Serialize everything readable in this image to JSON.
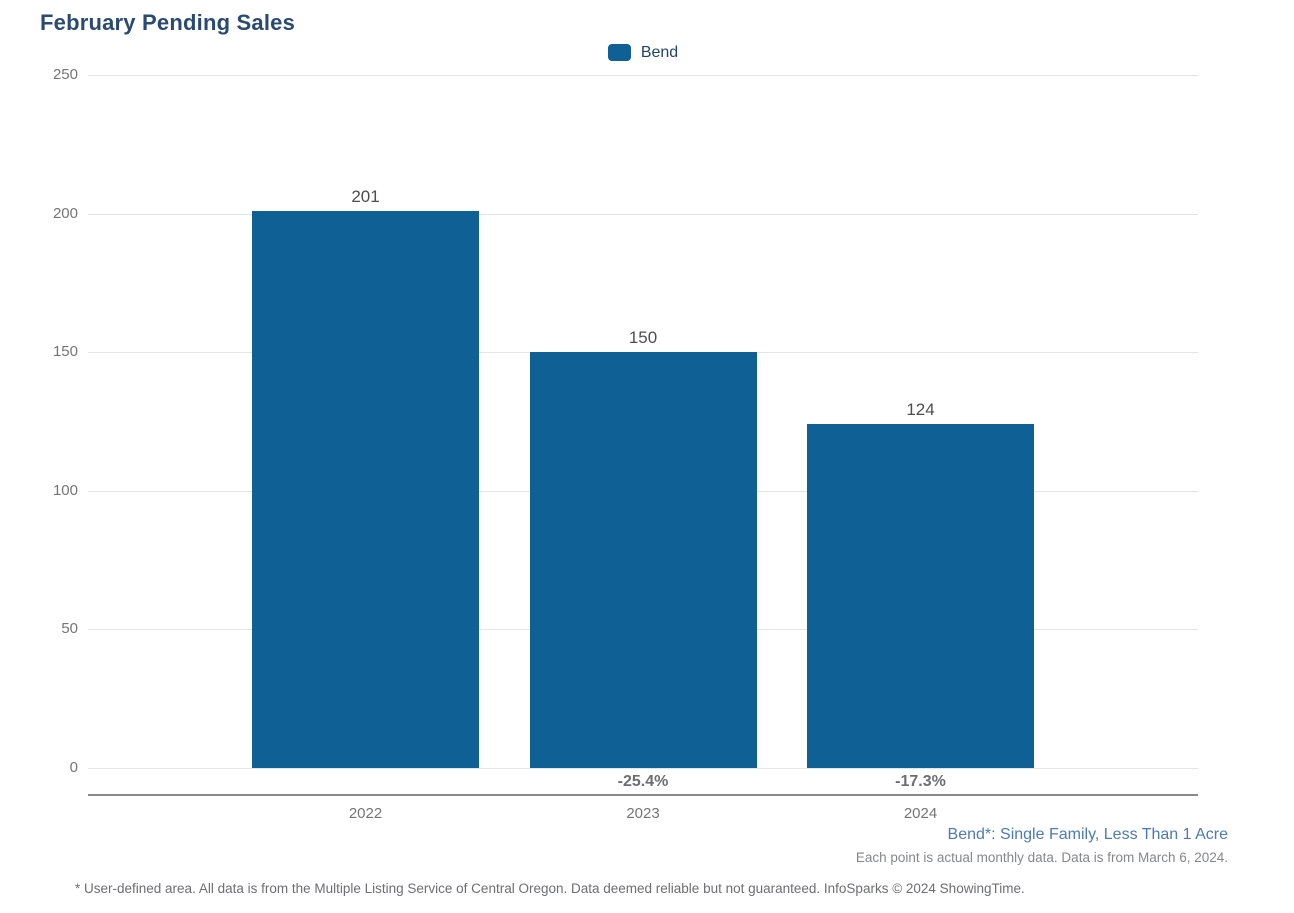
{
  "title": "February Pending Sales",
  "legend": {
    "items": [
      {
        "label": "Bend",
        "color": "#0f6195"
      }
    ]
  },
  "chart_data": {
    "type": "bar",
    "title": "February Pending Sales",
    "categories": [
      "2022",
      "2023",
      "2024"
    ],
    "series": [
      {
        "name": "Bend",
        "color": "#0f6195",
        "values": [
          201,
          150,
          124
        ]
      }
    ],
    "value_labels": [
      "201",
      "150",
      "124"
    ],
    "change_labels": [
      "",
      "-25.4%",
      "-17.3%"
    ],
    "xlabel": "",
    "ylabel": "",
    "ylim": [
      0,
      250
    ],
    "yticks": [
      0,
      50,
      100,
      150,
      200,
      250
    ],
    "grid": true,
    "legend_position": "top-center"
  },
  "footer": {
    "series_definition": "Bend*: Single Family, Less Than 1 Acre",
    "data_note": "Each point is actual monthly data. Data is from March 6, 2024.",
    "disclaimer": "* User-defined area. All data is from the Multiple Listing Service of Central Oregon. Data deemed reliable but not guaranteed. InfoSparks © 2024 ShowingTime."
  },
  "colors": {
    "bar": "#0f6195",
    "title_text": "#2a4a74",
    "axis_label": "#757575",
    "value_label": "#4d4e50",
    "change_label": "#6d6e71",
    "gridline": "#e4e4e4",
    "axis_line": "#8a8a8a",
    "footer_link": "#4c7bb5",
    "footer_text": "#85878a"
  }
}
